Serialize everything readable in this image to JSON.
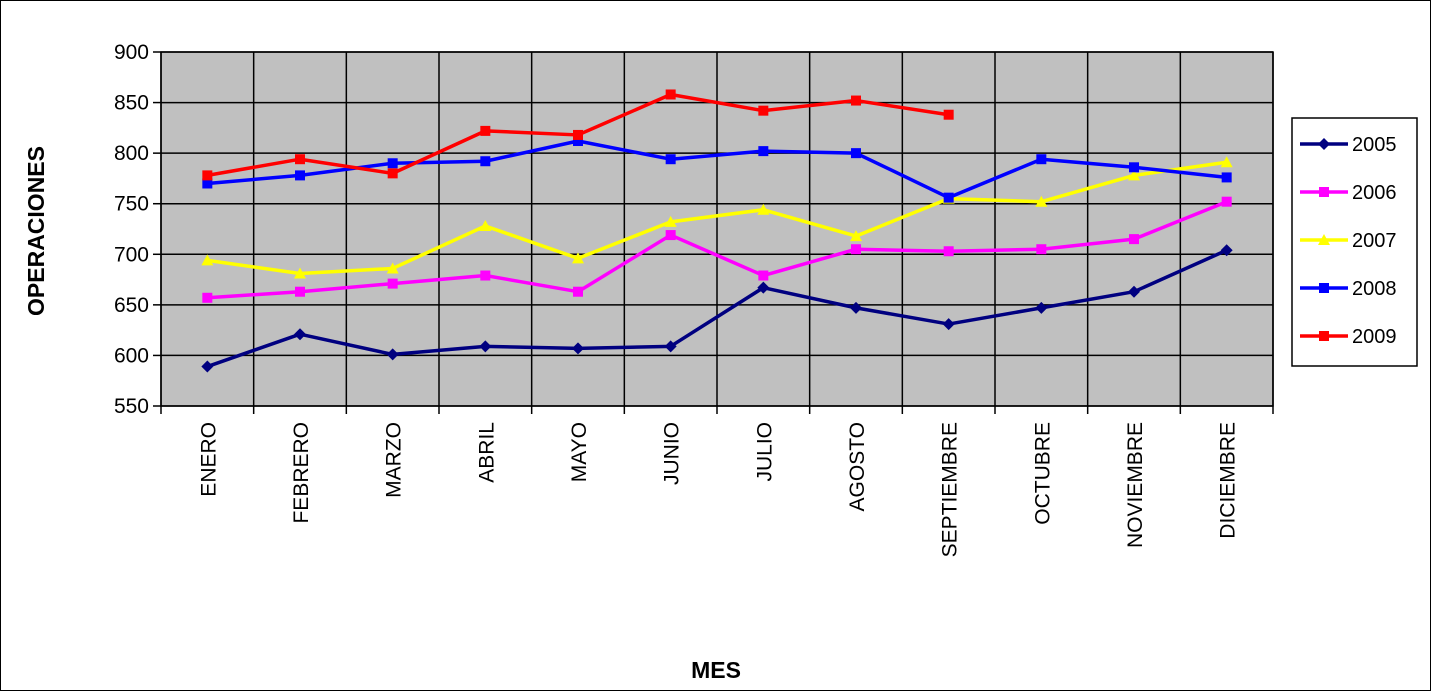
{
  "chart_data": {
    "type": "line",
    "xlabel": "MES",
    "ylabel": "OPERACIONES",
    "ylim": [
      550,
      900
    ],
    "ytick_step": 50,
    "grid": true,
    "legend_position": "right",
    "plot_background": "#c0c0c0",
    "categories": [
      "ENERO",
      "FEBRERO",
      "MARZO",
      "ABRIL",
      "MAYO",
      "JUNIO",
      "JULIO",
      "AGOSTO",
      "SEPTIEMBRE",
      "OCTUBRE",
      "NOVIEMBRE",
      "DICIEMBRE"
    ],
    "series": [
      {
        "name": "2005",
        "color": "#000080",
        "marker": "diamond",
        "values": [
          589,
          621,
          601,
          609,
          607,
          609,
          667,
          647,
          631,
          647,
          663,
          704
        ]
      },
      {
        "name": "2006",
        "color": "#ff00ff",
        "marker": "square",
        "values": [
          657,
          663,
          671,
          679,
          663,
          719,
          679,
          705,
          703,
          705,
          715,
          752
        ]
      },
      {
        "name": "2007",
        "color": "#ffff00",
        "marker": "triangle",
        "values": [
          694,
          681,
          686,
          728,
          696,
          732,
          744,
          718,
          755,
          752,
          778,
          791
        ]
      },
      {
        "name": "2008",
        "color": "#0000ff",
        "marker": "square",
        "values": [
          770,
          778,
          790,
          792,
          812,
          794,
          802,
          800,
          756,
          794,
          786,
          776
        ]
      },
      {
        "name": "2009",
        "color": "#ff0000",
        "marker": "square",
        "values": [
          778,
          794,
          780,
          822,
          818,
          858,
          842,
          852,
          838,
          null,
          null,
          null
        ]
      }
    ]
  }
}
